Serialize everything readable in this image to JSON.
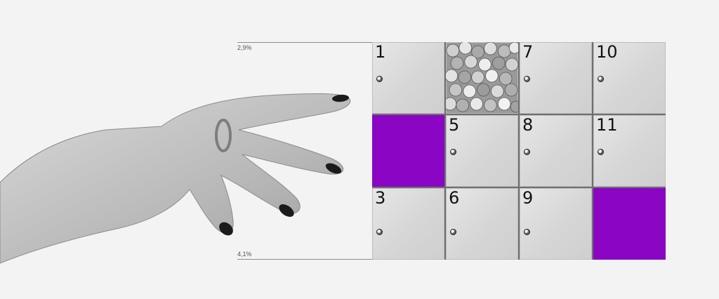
{
  "labels": {
    "percent_top": "2,9%",
    "percent_bottom": "4,1%"
  },
  "lockers": [
    {
      "number": "1",
      "kind": "door"
    },
    {
      "number": "",
      "kind": "coins"
    },
    {
      "number": "7",
      "kind": "door"
    },
    {
      "number": "10",
      "kind": "door"
    },
    {
      "number": "",
      "kind": "purple"
    },
    {
      "number": "5",
      "kind": "door"
    },
    {
      "number": "8",
      "kind": "door"
    },
    {
      "number": "11",
      "kind": "door"
    },
    {
      "number": "3",
      "kind": "door"
    },
    {
      "number": "6",
      "kind": "door"
    },
    {
      "number": "9",
      "kind": "door"
    },
    {
      "number": "",
      "kind": "purple"
    }
  ],
  "colors": {
    "accent_purple": "#8a05c4",
    "background": "#f3f3f3"
  },
  "illustration": {
    "hand": "hand-illustration",
    "coins": "coins-pile"
  }
}
